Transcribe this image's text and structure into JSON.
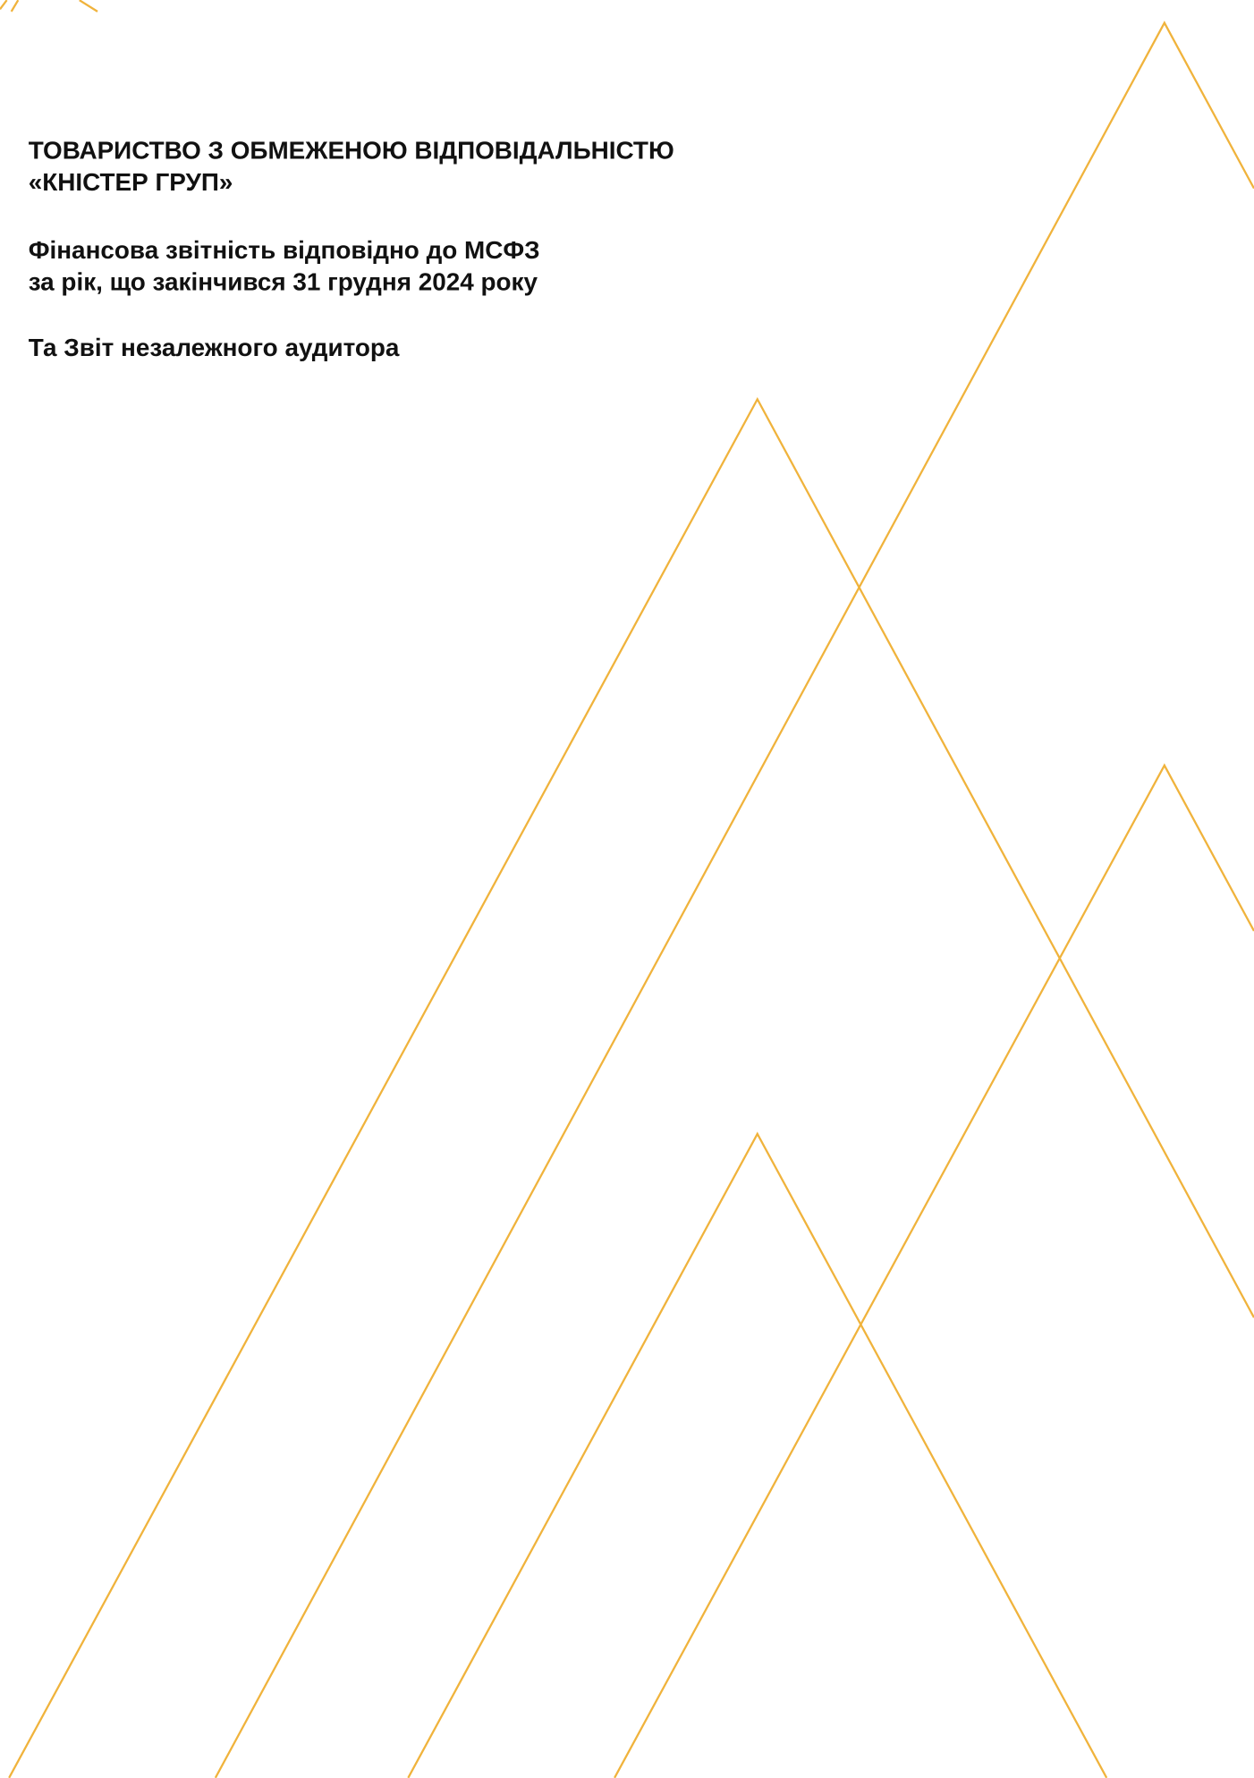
{
  "company": {
    "line1": "ТОВАРИСТВО З ОБМЕЖЕНОЮ ВІДПОВІДАЛЬНІСТЮ",
    "line2": "«КНІСТЕР ГРУП»"
  },
  "report": {
    "line1": "Фінансова звітність відповідно до МСФЗ",
    "line2": "за рік, що закінчився 31 грудня 2024 року"
  },
  "auditor": "Та Звіт незалежного аудитора"
}
